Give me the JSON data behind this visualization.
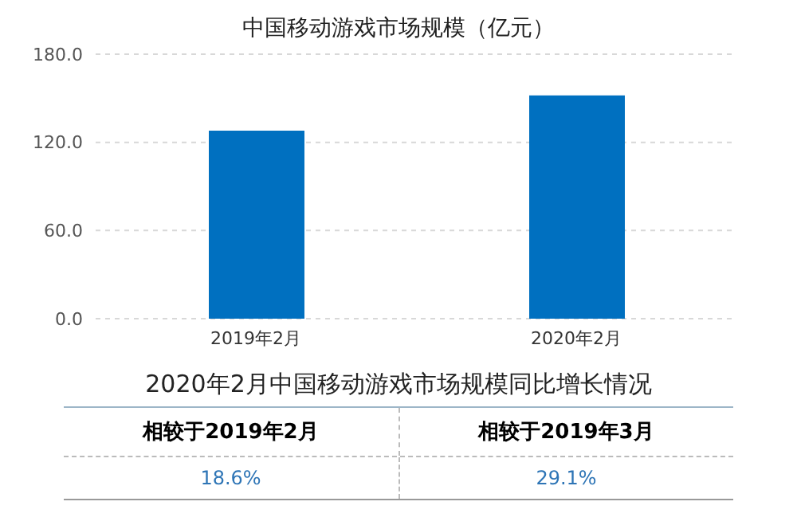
{
  "chart_data": [
    {
      "type": "bar",
      "title": "中国移动游戏市场规模（亿元）",
      "categories": [
        "2019年2月",
        "2020年2月"
      ],
      "values": [
        128,
        152
      ],
      "color": "#0070c0",
      "ylim": [
        0,
        180
      ],
      "yticks": [
        {
          "value": 0,
          "label": "0.0"
        },
        {
          "value": 60,
          "label": "60.0"
        },
        {
          "value": 120,
          "label": "120.0"
        },
        {
          "value": 180,
          "label": "180.0"
        }
      ],
      "grid": "y"
    },
    {
      "type": "other",
      "title": "2020年2月中国移动游戏市场规模同比增长情况",
      "categories": [
        "相较于2019年2月",
        "相较于2019年3月"
      ],
      "value_labels": [
        "18.6%",
        "29.1%"
      ],
      "color": "#2e75b6"
    }
  ]
}
